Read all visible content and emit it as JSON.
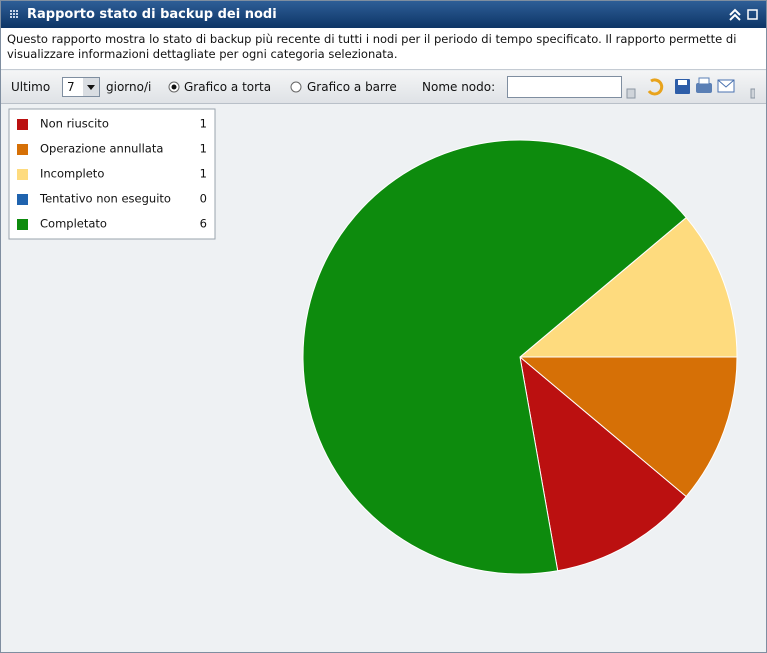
{
  "header": {
    "title": "Rapporto stato di backup dei nodi"
  },
  "description": "Questo rapporto mostra lo stato di backup più recente di tutti i nodi per il periodo di tempo specificato. Il rapporto permette di visualizzare informazioni dettagliate per ogni categoria selezionata.",
  "toolbar": {
    "last_label": "Ultimo",
    "days_value": "7",
    "days_unit": "giorno/i",
    "pie_option": "Grafico a torta",
    "bar_option": "Grafico a barre",
    "node_label": "Nome nodo:"
  },
  "chart_data": {
    "type": "pie",
    "categories": [
      "Non riuscito",
      "Operazione annullata",
      "Incompleto",
      "Tentativo non eseguito",
      "Completato"
    ],
    "values": [
      1,
      1,
      1,
      0,
      6
    ],
    "colors": [
      "#bb1010",
      "#d67006",
      "#fedb7e",
      "#1f63ae",
      "#0d8b0d"
    ],
    "legend": "top-left"
  }
}
